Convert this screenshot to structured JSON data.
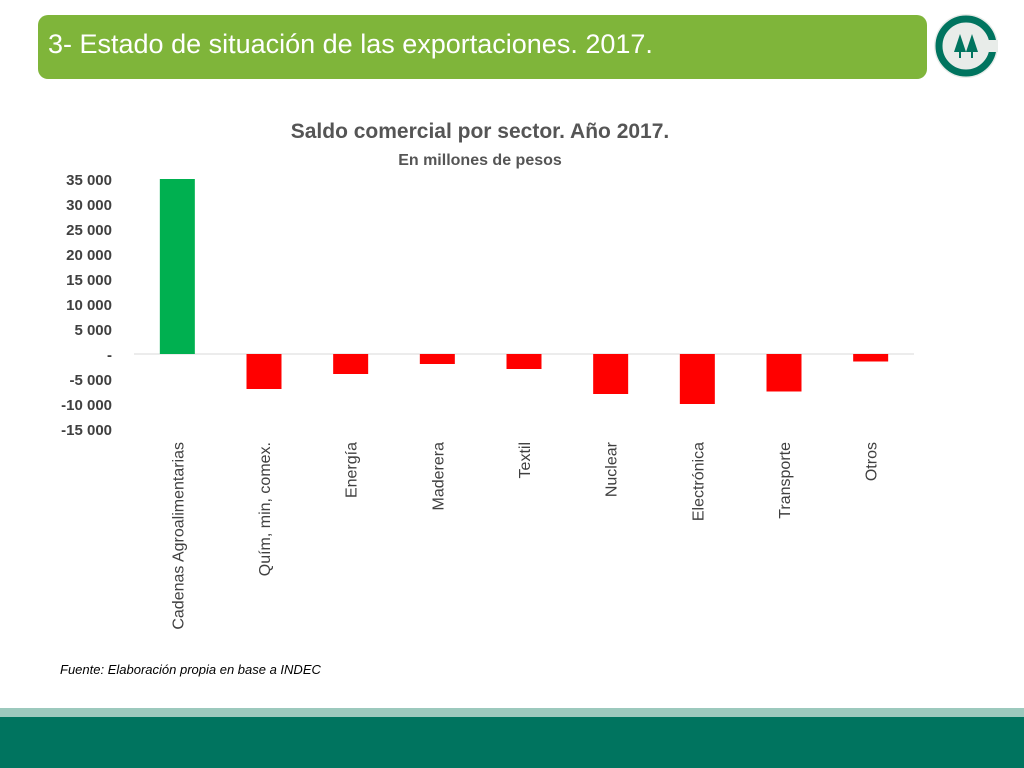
{
  "header": {
    "title": "3- Estado de situación de las exportaciones. 2017."
  },
  "colors": {
    "header_green": "#7fb53a",
    "positive_bar": "#00b050",
    "negative_bar": "#ff0000",
    "footer_dark": "#00745f",
    "footer_light": "#9cc9bd"
  },
  "chart_data": {
    "type": "bar",
    "title": "Saldo comercial por sector. Año 2017.",
    "subtitle": "En millones de pesos",
    "categories": [
      "Cadenas Agroalimentarias",
      "Quím, min, comex.",
      "Energía",
      "Maderera",
      "Textil",
      "Nuclear",
      "Electrónica",
      "Transporte",
      "Otros"
    ],
    "values": [
      35000,
      -7000,
      -4000,
      -2000,
      -3000,
      -8000,
      -10000,
      -7500,
      -1500
    ],
    "ylim": [
      -15000,
      35000
    ],
    "yticks": [
      35000,
      30000,
      25000,
      20000,
      15000,
      10000,
      5000,
      0,
      -5000,
      -10000,
      -15000
    ],
    "ytick_labels": [
      "35 000",
      "30 000",
      "25 000",
      "20 000",
      "15 000",
      "10 000",
      "5 000",
      "-",
      "-5 000",
      "-10 000",
      "-15 000"
    ],
    "grid": false,
    "legend": "none"
  },
  "source": "Fuente: Elaboración propia en base a INDEC"
}
